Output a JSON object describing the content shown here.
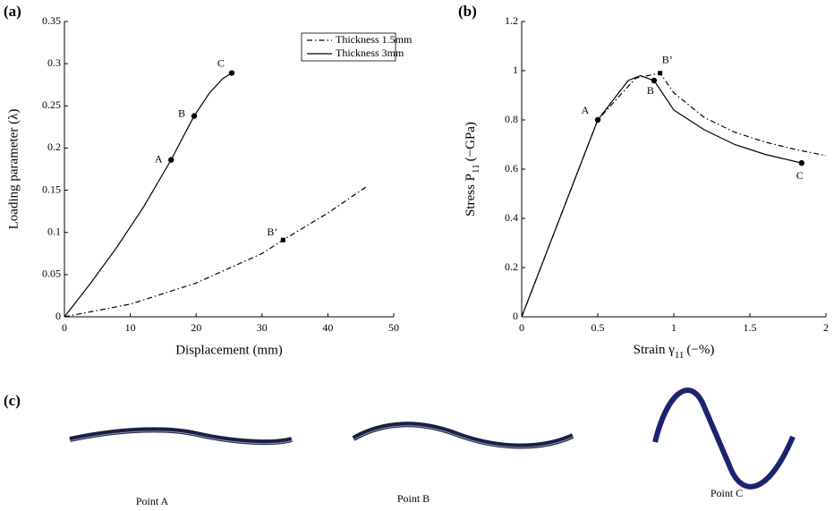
{
  "chart_data": [
    {
      "type": "line",
      "panel": "(a)",
      "x_label": "Displacement (mm)",
      "y_label": "Loading parameter (λ)",
      "xlim": [
        0,
        50
      ],
      "xticks": [
        0,
        10,
        20,
        30,
        40,
        50
      ],
      "ylim": [
        0,
        0.35
      ],
      "yticks": [
        0,
        0.05,
        0.1,
        0.15,
        0.2,
        0.25,
        0.3,
        0.35
      ],
      "legend": "upper right",
      "series": [
        {
          "name": "Thickness 1.5mm",
          "style": "dashdot",
          "color": "#000000",
          "x": [
            0,
            10,
            20,
            30,
            33.2,
            40,
            46
          ],
          "values": [
            0,
            0.015,
            0.04,
            0.075,
            0.091,
            0.123,
            0.155
          ]
        },
        {
          "name": "Thickness 3mm",
          "style": "solid",
          "color": "#000000",
          "x": [
            0,
            4,
            8,
            12,
            16.2,
            18,
            19.7,
            22,
            24,
            25.4
          ],
          "values": [
            0,
            0.04,
            0.083,
            0.13,
            0.186,
            0.213,
            0.238,
            0.265,
            0.282,
            0.289
          ]
        }
      ],
      "points": [
        {
          "label": "A",
          "marker": "circle",
          "x": 16.2,
          "y": 0.186
        },
        {
          "label": "B",
          "marker": "circle",
          "x": 19.7,
          "y": 0.238
        },
        {
          "label": "C",
          "marker": "circle",
          "x": 25.4,
          "y": 0.289
        },
        {
          "label": "B’",
          "marker": "square",
          "x": 33.2,
          "y": 0.091
        }
      ]
    },
    {
      "type": "line",
      "panel": "(b)",
      "x_label": {
        "text": "Strain γ",
        "sub": "11",
        "suffix": "(−%)"
      },
      "y_label": {
        "text": "Stress P",
        "sub": "11",
        "suffix": "(−GPa)"
      },
      "xlim": [
        0,
        2
      ],
      "xticks": [
        0,
        0.5,
        1,
        1.5,
        2
      ],
      "ylim": [
        0,
        1.2
      ],
      "yticks": [
        0,
        0.2,
        0.4,
        0.6,
        0.8,
        1,
        1.2
      ],
      "series": [
        {
          "style": "dashdot",
          "color": "#000000",
          "x": [
            0,
            0.5,
            0.75,
            0.91,
            1.0,
            1.2,
            1.4,
            1.6,
            1.8,
            2
          ],
          "values": [
            0,
            0.8,
            0.97,
            0.99,
            0.91,
            0.81,
            0.75,
            0.71,
            0.68,
            0.655
          ]
        },
        {
          "style": "solid",
          "color": "#000000",
          "x": [
            0,
            0.5,
            0.7,
            0.78,
            0.87,
            1.0,
            1.2,
            1.4,
            1.6,
            1.84
          ],
          "values": [
            0,
            0.8,
            0.96,
            0.98,
            0.96,
            0.84,
            0.76,
            0.7,
            0.66,
            0.625
          ]
        }
      ],
      "points": [
        {
          "label": "A",
          "marker": "circle",
          "x": 0.5,
          "y": 0.8
        },
        {
          "label": "B",
          "marker": "circle",
          "x": 0.87,
          "y": 0.96
        },
        {
          "label": "B’",
          "marker": "square",
          "x": 0.91,
          "y": 0.99
        },
        {
          "label": "C",
          "marker": "circle",
          "x": 1.84,
          "y": 0.625
        }
      ]
    }
  ],
  "panel_c": {
    "panel": "(c)",
    "labels": [
      "Point A",
      "Point B",
      "Point C"
    ]
  }
}
